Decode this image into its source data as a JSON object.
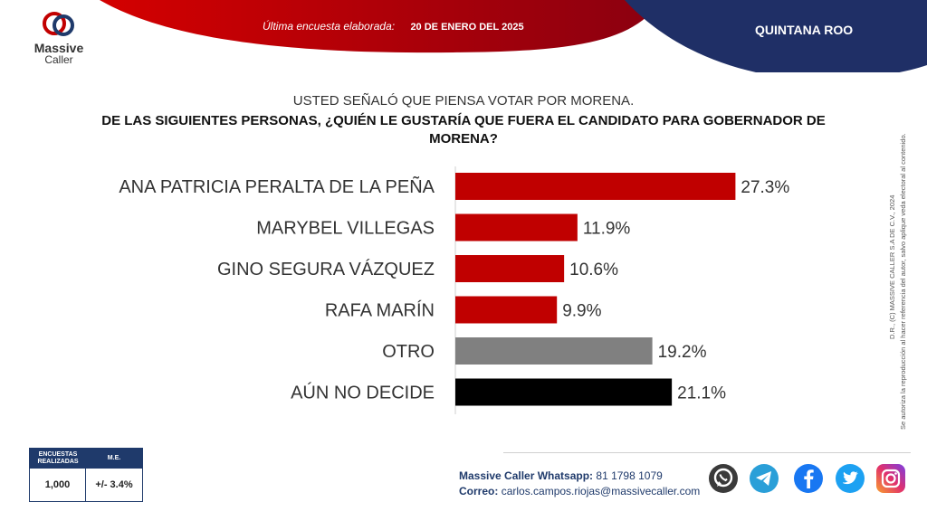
{
  "header": {
    "survey_label": "Última encuesta elaborada:",
    "survey_date": "20 DE ENERO DEL 2025",
    "region": "QUINTANA ROO"
  },
  "brand": {
    "name": "Massive",
    "sub": "Caller",
    "colors": {
      "red": "#c20000",
      "navy": "#1f3a6b"
    }
  },
  "question": {
    "line1": "USTED SEÑALÓ QUE PIENSA VOTAR POR MORENA.",
    "line2": "DE LAS SIGUIENTES PERSONAS, ¿QUIÉN LE GUSTARÍA QUE FUERA EL CANDIDATO PARA GOBERNADOR DE MORENA?"
  },
  "chart_data": {
    "type": "bar",
    "orientation": "horizontal",
    "categories": [
      "ANA PATRICIA PERALTA DE LA PEÑA",
      "MARYBEL VILLEGAS",
      "GINO SEGURA VÁZQUEZ",
      "RAFA MARÍN",
      "OTRO",
      "AÚN NO DECIDE"
    ],
    "values": [
      27.3,
      11.9,
      10.6,
      9.9,
      19.2,
      21.1
    ],
    "labels": [
      "27.3%",
      "11.9%",
      "10.6%",
      "9.9%",
      "19.2%",
      "21.1%"
    ],
    "colors": [
      "#c00000",
      "#c00000",
      "#c00000",
      "#c00000",
      "#808080",
      "#000000"
    ],
    "xlim": [
      0,
      30
    ],
    "grid": false
  },
  "credit": {
    "line1": "D.R., (C) MASSIVE CALLER S.A DE C.V., 2024",
    "line2": "Se autoriza la reproducción al hacer referencia del autor, salvo aplique veda electoral al contenido."
  },
  "stats": {
    "h1": "ENCUESTAS REALIZADAS",
    "h2": "M.E.",
    "v1": "1,000",
    "v2": "+/- 3.4%"
  },
  "contact": {
    "whatsapp_label": "Massive Caller Whatsapp:",
    "whatsapp_value": "81 1798 1079",
    "email_label": "Correo:",
    "email_value": "carlos.campos.riojas@massivecaller.com"
  },
  "social_icons": [
    "whatsapp-icon",
    "telegram-icon",
    "facebook-icon",
    "twitter-icon",
    "instagram-icon"
  ]
}
